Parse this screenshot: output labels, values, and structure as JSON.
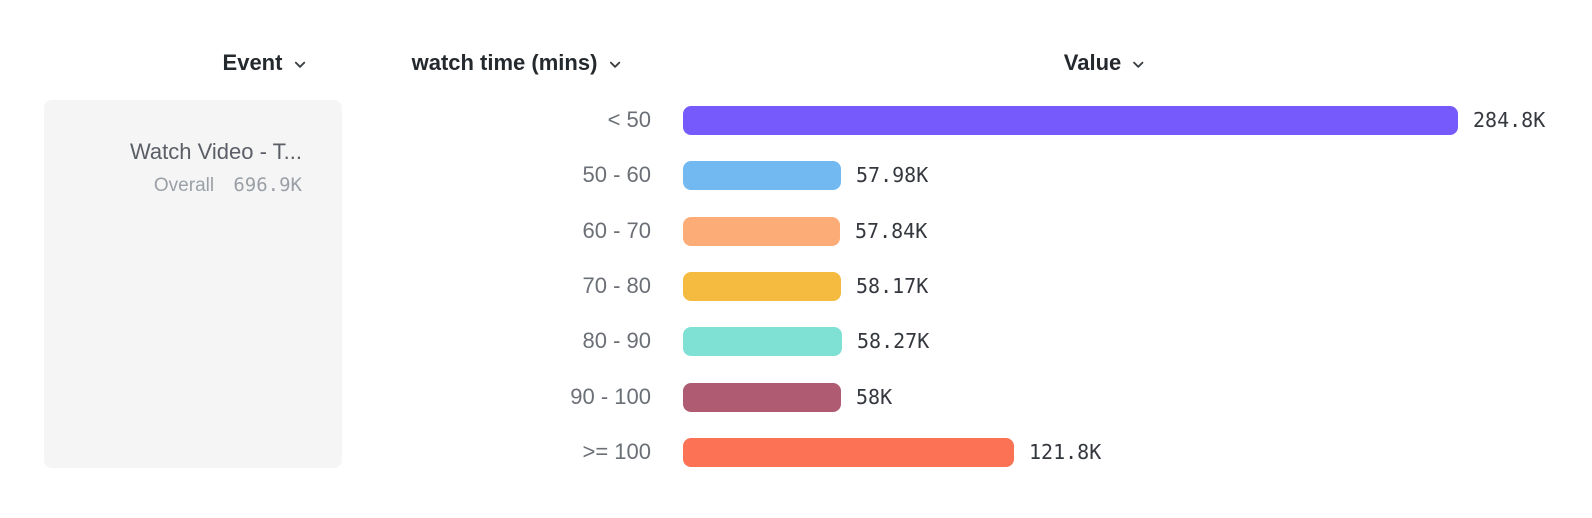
{
  "header": {
    "columns": [
      {
        "id": "event",
        "label": "Event"
      },
      {
        "id": "breakdown",
        "label": "watch time (mins)"
      },
      {
        "id": "value",
        "label": "Value"
      }
    ]
  },
  "event_card": {
    "title": "Watch Video - T...",
    "overall_label": "Overall",
    "overall_value": "696.9K"
  },
  "icons": {
    "header_dropdown": "chevron-down-icon"
  },
  "colors": {
    "card_background": "#f5f5f6",
    "header_text": "#24292e",
    "category_text": "#6b6f76",
    "value_text": "#34383e"
  },
  "chart_data": {
    "type": "bar",
    "orientation": "horizontal",
    "title": "",
    "xlabel": "Value",
    "ylabel": "watch time (mins)",
    "xlim": [
      0,
      284800
    ],
    "grid": false,
    "legend": "none",
    "categories": [
      "< 50",
      "50 - 60",
      "60 - 70",
      "70 - 80",
      "80 - 90",
      "90 - 100",
      ">= 100"
    ],
    "values": [
      284800,
      57980,
      57840,
      58170,
      58270,
      58000,
      121800
    ],
    "value_labels": [
      "284.8K",
      "57.98K",
      "57.84K",
      "58.17K",
      "58.27K",
      "58K",
      "121.8K"
    ],
    "bar_colors": [
      "#765afc",
      "#72b9f2",
      "#fcad77",
      "#f5ba40",
      "#7fe0d4",
      "#af5b71",
      "#fc7254"
    ]
  }
}
